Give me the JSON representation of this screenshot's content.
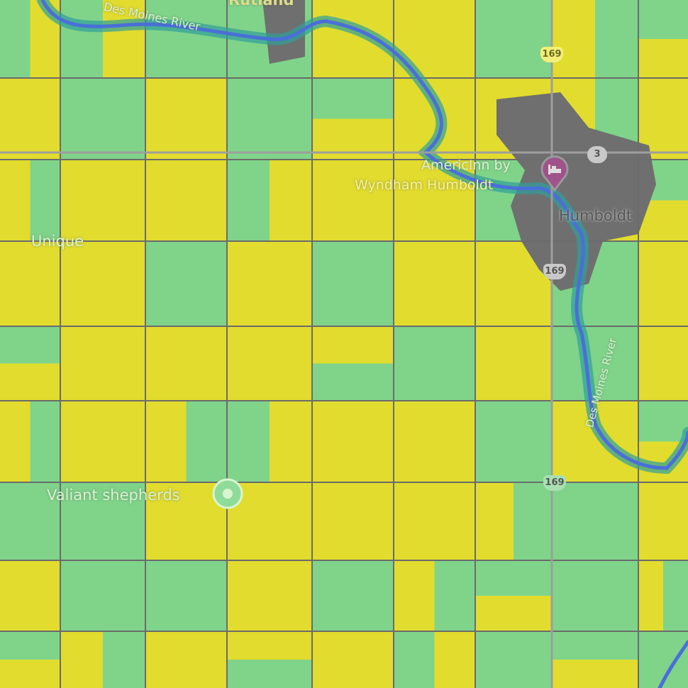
{
  "map": {
    "labels": {
      "rutland": "Rutland",
      "des_moines_river_top": "Des Moines River",
      "des_moines_river_right": "Des Moines River",
      "hotel_line1": "AmericInn by",
      "hotel_line2": "Wyndham Humboldt",
      "humboldt": "Humboldt",
      "unique": "Unique",
      "valiant": "Valiant shepherds"
    },
    "route_shields": {
      "us169_top": "169",
      "us169_mid": "169",
      "us169_low": "169",
      "ia3": "3"
    },
    "icons": {
      "hotel": "bed-icon",
      "place": "place-pin-icon"
    },
    "colors": {
      "soy": "#7fd48a",
      "corn": "#e2dc2e",
      "water": "#4a6fd8",
      "wetland": "#2f9f9a",
      "forest": "#1f8a3a",
      "urban": "#6f6f6f",
      "road": "#6b6b6b",
      "hotel_pin": "#a0528a"
    }
  }
}
